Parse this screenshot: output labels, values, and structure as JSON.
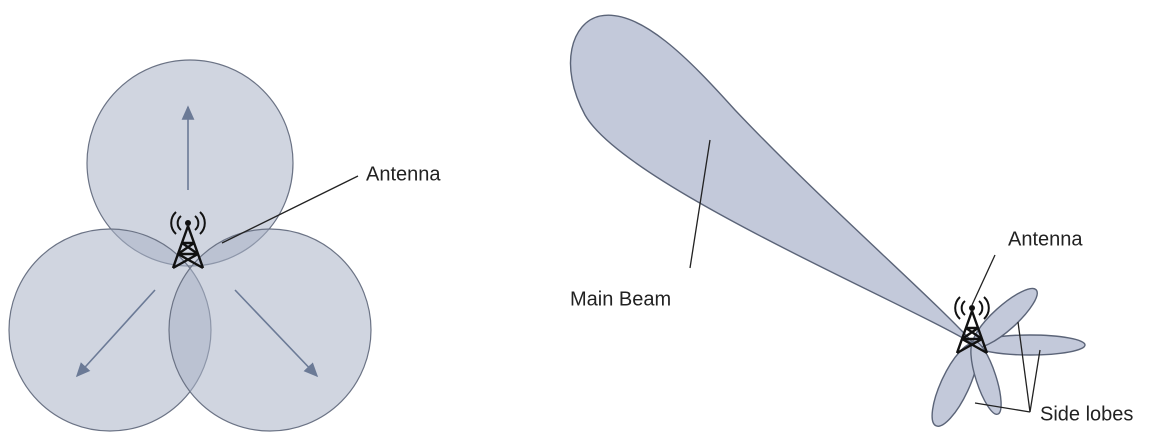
{
  "coverage": {
    "label": "Antenna"
  },
  "beam": {
    "main_label": "Main Beam",
    "antenna_label": "Antenna",
    "side_label": "Side lobes"
  }
}
